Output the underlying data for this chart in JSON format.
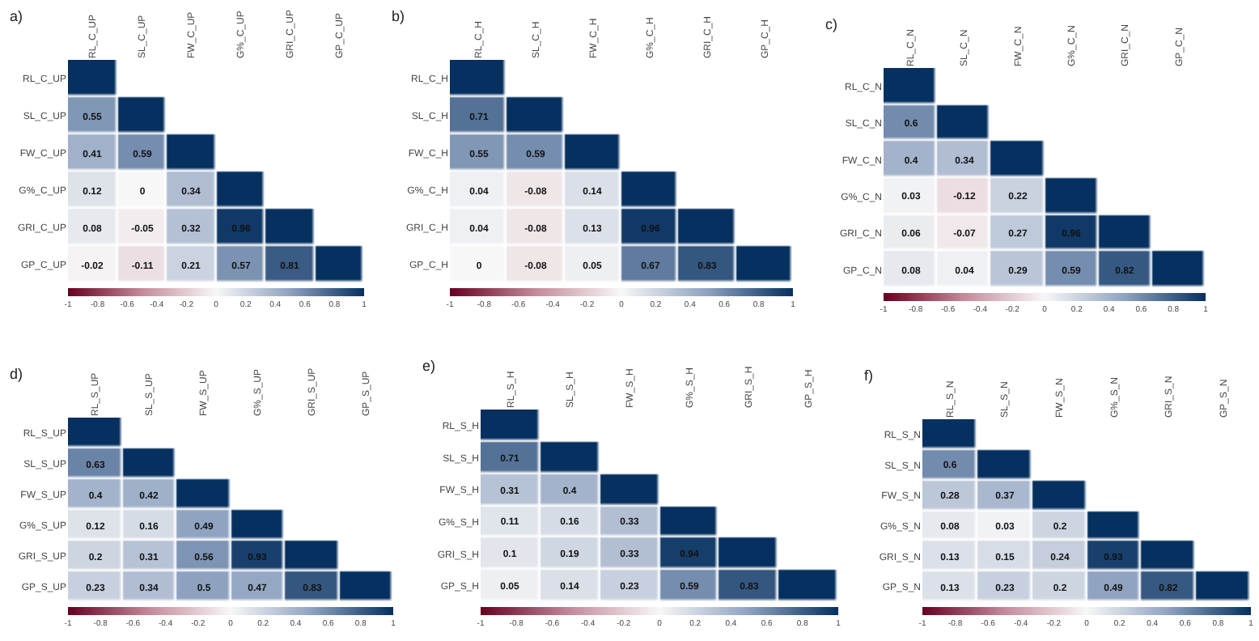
{
  "chart_data": [
    {
      "type": "heatmap",
      "title": "a)",
      "categories": [
        "RL_C_UP",
        "SL_C_UP",
        "FW_C_UP",
        "G%_C_UP",
        "GRI_C_UP",
        "GP_C_UP"
      ],
      "y_categories": [
        "RL_C_UP",
        "SL_C_UP",
        "FW_C_UP",
        "G%_C_UP",
        "GRI_C_UP",
        "GP_C_UP"
      ],
      "cells": [
        [
          1,
          null,
          null,
          null,
          null,
          null
        ],
        [
          0.55,
          1,
          null,
          null,
          null,
          null
        ],
        [
          0.41,
          0.59,
          1,
          null,
          null,
          null
        ],
        [
          0.12,
          0,
          0.34,
          1,
          null,
          null
        ],
        [
          0.08,
          -0.05,
          0.32,
          0.96,
          1,
          null
        ],
        [
          -0.02,
          -0.11,
          0.21,
          0.57,
          0.81,
          1
        ]
      ],
      "cell_labels": [
        [
          null,
          null,
          null,
          null,
          null,
          null
        ],
        [
          "0.55",
          null,
          null,
          null,
          null,
          null
        ],
        [
          "0.41",
          "0.59",
          null,
          null,
          null,
          null
        ],
        [
          "0.12",
          "0",
          "0.34",
          null,
          null,
          null
        ],
        [
          "0.08",
          "-0.05",
          "0.32",
          "0.96",
          null,
          null
        ],
        [
          "-0.02",
          "-0.11",
          "0.21",
          "0.57",
          "0.81",
          null
        ]
      ],
      "clim": [
        -1,
        1
      ],
      "cticks": [
        -1,
        -0.8,
        -0.6,
        -0.4,
        -0.2,
        0,
        0.2,
        0.4,
        0.6,
        0.8,
        1
      ]
    },
    {
      "type": "heatmap",
      "title": "b)",
      "categories": [
        "RL_C_H",
        "SL_C_H",
        "FW_C_H",
        "G%_C_H",
        "GRI_C_H",
        "GP_C_H"
      ],
      "y_categories": [
        "RL_C_H",
        "SL_C_H",
        "FW_C_H",
        "G%_C_H",
        "GRI_C_H",
        "GP_C_H"
      ],
      "cells": [
        [
          1,
          null,
          null,
          null,
          null,
          null
        ],
        [
          0.71,
          1,
          null,
          null,
          null,
          null
        ],
        [
          0.55,
          0.59,
          1,
          null,
          null,
          null
        ],
        [
          0.04,
          -0.08,
          0.14,
          1,
          null,
          null
        ],
        [
          0.04,
          -0.08,
          0.13,
          0.96,
          1,
          null
        ],
        [
          0,
          -0.08,
          0.05,
          0.67,
          0.83,
          1
        ]
      ],
      "cell_labels": [
        [
          null,
          null,
          null,
          null,
          null,
          null
        ],
        [
          "0.71",
          null,
          null,
          null,
          null,
          null
        ],
        [
          "0.55",
          "0.59",
          null,
          null,
          null,
          null
        ],
        [
          "0.04",
          "-0.08",
          "0.14",
          null,
          null,
          null
        ],
        [
          "0.04",
          "-0.08",
          "0.13",
          "0.96",
          null,
          null
        ],
        [
          "0",
          "-0.08",
          "0.05",
          "0.67",
          "0.83",
          null
        ]
      ],
      "clim": [
        -1,
        1
      ],
      "cticks": [
        -1,
        -0.8,
        -0.6,
        -0.4,
        -0.2,
        0,
        0.2,
        0.4,
        0.6,
        0.8,
        1
      ]
    },
    {
      "type": "heatmap",
      "title": "c)",
      "categories": [
        "RL_C_N",
        "SL_C_N",
        "FW_C_N",
        "G%_C_N",
        "GRI_C_N",
        "GP_C_N"
      ],
      "y_categories": [
        "RL_C_N",
        "SL_C_N",
        "FW_C_N",
        "G%_C_N",
        "GRI_C_N",
        "GP_C_N"
      ],
      "cells": [
        [
          1,
          null,
          null,
          null,
          null,
          null
        ],
        [
          0.6,
          1,
          null,
          null,
          null,
          null
        ],
        [
          0.4,
          0.34,
          1,
          null,
          null,
          null
        ],
        [
          0.03,
          -0.12,
          0.22,
          1,
          null,
          null
        ],
        [
          0.06,
          -0.07,
          0.27,
          0.96,
          1,
          null
        ],
        [
          0.08,
          0.04,
          0.29,
          0.59,
          0.82,
          1
        ]
      ],
      "cell_labels": [
        [
          null,
          null,
          null,
          null,
          null,
          null
        ],
        [
          "0.6",
          null,
          null,
          null,
          null,
          null
        ],
        [
          "0.4",
          "0.34",
          null,
          null,
          null,
          null
        ],
        [
          "0.03",
          "-0.12",
          "0.22",
          null,
          null,
          null
        ],
        [
          "0.06",
          "-0.07",
          "0.27",
          "0.96",
          null,
          null
        ],
        [
          "0.08",
          "0.04",
          "0.29",
          "0.59",
          "0.82",
          null
        ]
      ],
      "clim": [
        -1,
        1
      ],
      "cticks": [
        -1,
        -0.8,
        -0.6,
        -0.4,
        -0.2,
        0,
        0.2,
        0.4,
        0.6,
        0.8,
        1
      ]
    },
    {
      "type": "heatmap",
      "title": "d)",
      "categories": [
        "RL_S_UP",
        "SL_S_UP",
        "FW_S_UP",
        "G%_S_UP",
        "GRI_S_UP",
        "GP_S_UP"
      ],
      "y_categories": [
        "RL_S_UP",
        "SL_S_UP",
        "FW_S_UP",
        "G%_S_UP",
        "GRI_S_UP",
        "GP_S_UP"
      ],
      "cells": [
        [
          1,
          null,
          null,
          null,
          null,
          null
        ],
        [
          0.63,
          1,
          null,
          null,
          null,
          null
        ],
        [
          0.4,
          0.42,
          1,
          null,
          null,
          null
        ],
        [
          0.12,
          0.16,
          0.49,
          1,
          null,
          null
        ],
        [
          0.2,
          0.31,
          0.56,
          0.93,
          1,
          null
        ],
        [
          0.23,
          0.34,
          0.5,
          0.47,
          0.83,
          1
        ]
      ],
      "cell_labels": [
        [
          null,
          null,
          null,
          null,
          null,
          null
        ],
        [
          "0.63",
          null,
          null,
          null,
          null,
          null
        ],
        [
          "0.4",
          "0.42",
          null,
          null,
          null,
          null
        ],
        [
          "0.12",
          "0.16",
          "0.49",
          null,
          null,
          null
        ],
        [
          "0.2",
          "0.31",
          "0.56",
          "0.93",
          null,
          null
        ],
        [
          "0.23",
          "0.34",
          "0.5",
          "0.47",
          "0.83",
          null
        ]
      ],
      "clim": [
        -1,
        1
      ],
      "cticks": [
        -1,
        -0.8,
        -0.6,
        -0.4,
        -0.2,
        0,
        0.2,
        0.4,
        0.6,
        0.8,
        1
      ]
    },
    {
      "type": "heatmap",
      "title": "e)",
      "categories": [
        "RL_S_H",
        "SL_S_H",
        "FW_S_H",
        "G%_S_H",
        "GRI_S_H",
        "GP_S_H"
      ],
      "y_categories": [
        "RL_S_H",
        "SL_S_H",
        "FW_S_H",
        "G%_S_H",
        "GRI_S_H",
        "GP_S_H"
      ],
      "cells": [
        [
          1,
          null,
          null,
          null,
          null,
          null
        ],
        [
          0.71,
          1,
          null,
          null,
          null,
          null
        ],
        [
          0.31,
          0.4,
          1,
          null,
          null,
          null
        ],
        [
          0.11,
          0.16,
          0.33,
          1,
          null,
          null
        ],
        [
          0.1,
          0.19,
          0.33,
          0.94,
          1,
          null
        ],
        [
          0.05,
          0.14,
          0.23,
          0.59,
          0.83,
          1
        ]
      ],
      "cell_labels": [
        [
          null,
          null,
          null,
          null,
          null,
          null
        ],
        [
          "0.71",
          null,
          null,
          null,
          null,
          null
        ],
        [
          "0.31",
          "0.4",
          null,
          null,
          null,
          null
        ],
        [
          "0.11",
          "0.16",
          "0.33",
          null,
          null,
          null
        ],
        [
          "0.1",
          "0.19",
          "0.33",
          "0.94",
          null,
          null
        ],
        [
          "0.05",
          "0.14",
          "0.23",
          "0.59",
          "0.83",
          null
        ]
      ],
      "clim": [
        -1,
        1
      ],
      "cticks": [
        -1,
        -0.8,
        -0.6,
        -0.4,
        -0.2,
        0,
        0.2,
        0.4,
        0.6,
        0.8,
        1
      ]
    },
    {
      "type": "heatmap",
      "title": "f)",
      "categories": [
        "RL_S_N",
        "SL_S_N",
        "FW_S_N",
        "G%_S_N",
        "GRI_S_N",
        "GP_S_N"
      ],
      "y_categories": [
        "RL_S_N",
        "SL_S_N",
        "FW_S_N",
        "G%_S_N",
        "GRI_S_N",
        "GP_S_N"
      ],
      "cells": [
        [
          1,
          null,
          null,
          null,
          null,
          null
        ],
        [
          0.6,
          1,
          null,
          null,
          null,
          null
        ],
        [
          0.28,
          0.37,
          1,
          null,
          null,
          null
        ],
        [
          0.08,
          0.03,
          0.2,
          1,
          null,
          null
        ],
        [
          0.13,
          0.15,
          0.24,
          0.93,
          1,
          null
        ],
        [
          0.13,
          0.23,
          0.2,
          0.49,
          0.82,
          1
        ]
      ],
      "cell_labels": [
        [
          null,
          null,
          null,
          null,
          null,
          null
        ],
        [
          "0.6",
          null,
          null,
          null,
          null,
          null
        ],
        [
          "0.28",
          "0.37",
          null,
          null,
          null,
          null
        ],
        [
          "0.08",
          "0.03",
          "0.2",
          null,
          null,
          null
        ],
        [
          "0.13",
          "0.15",
          "0.24",
          "0.93",
          null,
          null
        ],
        [
          "0.13",
          "0.23",
          "0.2",
          "0.49",
          "0.82",
          null
        ]
      ],
      "clim": [
        -1,
        1
      ],
      "cticks": [
        -1,
        -0.8,
        -0.6,
        -0.4,
        -0.2,
        0,
        0.2,
        0.4,
        0.6,
        0.8,
        1
      ]
    }
  ]
}
